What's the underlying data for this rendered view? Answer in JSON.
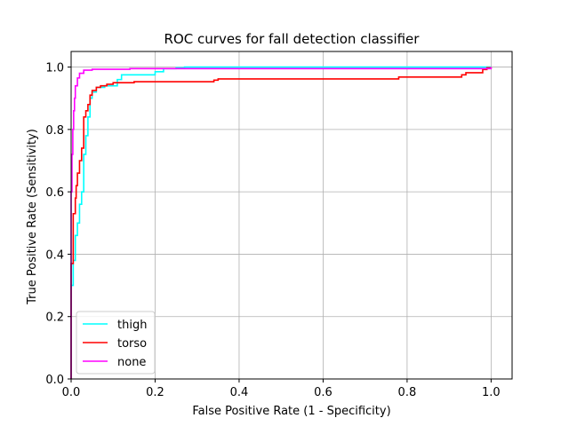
{
  "chart_data": {
    "type": "line",
    "title": "ROC curves for fall detection classifier",
    "xlabel": "False Positive Rate (1 - Specificity)",
    "ylabel": "True Positive Rate (Sensitivity)",
    "xlim": [
      0,
      1.05
    ],
    "ylim": [
      0,
      1.05
    ],
    "xticks": [
      0.0,
      0.2,
      0.4,
      0.6,
      0.8,
      1.0
    ],
    "xtick_labels": [
      "0.0",
      "0.2",
      "0.4",
      "0.6",
      "0.8",
      "1.0"
    ],
    "yticks": [
      0.0,
      0.2,
      0.4,
      0.6,
      0.8,
      1.0
    ],
    "ytick_labels": [
      "0.0",
      "0.2",
      "0.4",
      "0.6",
      "0.8",
      "1.0"
    ],
    "grid": true,
    "legend_position": "lower-left",
    "series": [
      {
        "name": "thigh",
        "color": "#00ffff",
        "step": true,
        "x": [
          0.0,
          0.0,
          0.005,
          0.01,
          0.01,
          0.015,
          0.02,
          0.02,
          0.025,
          0.03,
          0.03,
          0.035,
          0.04,
          0.045,
          0.045,
          0.05,
          0.06,
          0.06,
          0.08,
          0.1,
          0.11,
          0.12,
          0.16,
          0.2,
          0.22,
          0.22,
          0.25,
          0.27,
          0.4,
          0.6,
          0.8,
          0.98,
          1.0
        ],
        "y": [
          0.0,
          0.3,
          0.38,
          0.42,
          0.46,
          0.5,
          0.52,
          0.56,
          0.6,
          0.66,
          0.72,
          0.78,
          0.84,
          0.88,
          0.9,
          0.92,
          0.93,
          0.935,
          0.94,
          0.94,
          0.96,
          0.975,
          0.975,
          0.985,
          0.985,
          0.995,
          0.998,
          1.0,
          1.0,
          1.0,
          1.0,
          1.0,
          1.0
        ]
      },
      {
        "name": "torso",
        "color": "#ff0000",
        "step": true,
        "x": [
          0.0,
          0.0,
          0.005,
          0.005,
          0.01,
          0.012,
          0.015,
          0.02,
          0.025,
          0.025,
          0.03,
          0.03,
          0.035,
          0.04,
          0.045,
          0.05,
          0.06,
          0.07,
          0.085,
          0.1,
          0.15,
          0.2,
          0.3,
          0.335,
          0.34,
          0.35,
          0.5,
          0.7,
          0.78,
          0.78,
          0.85,
          0.88,
          0.92,
          0.93,
          0.94,
          0.98,
          0.98,
          0.99,
          1.0
        ],
        "y": [
          0.0,
          0.37,
          0.45,
          0.53,
          0.58,
          0.62,
          0.66,
          0.7,
          0.72,
          0.74,
          0.79,
          0.84,
          0.86,
          0.88,
          0.91,
          0.925,
          0.935,
          0.94,
          0.945,
          0.95,
          0.953,
          0.953,
          0.953,
          0.953,
          0.958,
          0.962,
          0.962,
          0.962,
          0.962,
          0.968,
          0.968,
          0.968,
          0.968,
          0.975,
          0.982,
          0.985,
          0.992,
          0.998,
          1.0
        ]
      },
      {
        "name": "none",
        "color": "#ff00ff",
        "step": true,
        "x": [
          0.0,
          0.0,
          0.002,
          0.004,
          0.006,
          0.008,
          0.01,
          0.015,
          0.02,
          0.03,
          0.05,
          0.1,
          0.14,
          0.2,
          0.5,
          0.8,
          0.98,
          1.0
        ],
        "y": [
          0.0,
          0.6,
          0.72,
          0.8,
          0.86,
          0.9,
          0.94,
          0.965,
          0.98,
          0.99,
          0.993,
          0.993,
          0.995,
          0.995,
          0.995,
          0.995,
          0.995,
          1.0
        ]
      }
    ]
  }
}
